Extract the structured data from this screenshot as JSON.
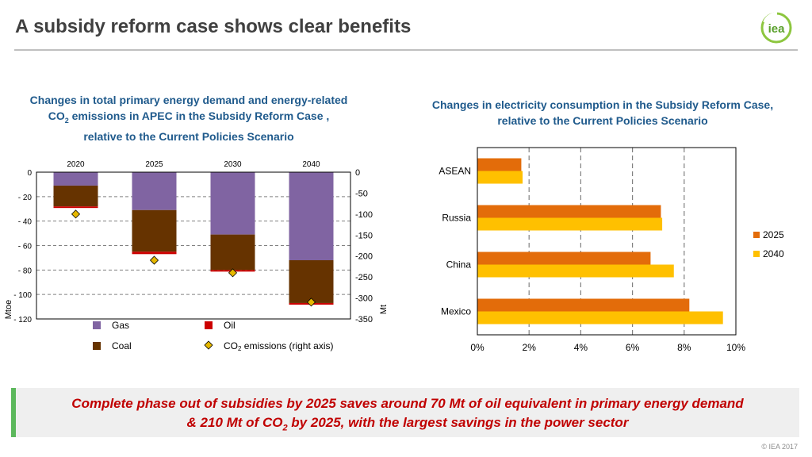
{
  "header": {
    "title": "A subsidy reform case shows clear benefits",
    "logo_text": "iea"
  },
  "left_chart_title": {
    "line1": "Changes in total primary energy demand and energy-related",
    "line2_pre": "CO",
    "line2_sub": "2",
    "line2_post": " emissions in APEC in the Subsidy Reform Case ,",
    "line3": "relative to the Current Policies Scenario"
  },
  "right_chart_title": {
    "line1": "Changes in electricity consumption in the Subsidy Reform Case,",
    "line2": "relative to the Current Policies Scenario"
  },
  "banner": {
    "line1": "Complete phase out of subsidies by 2025 saves around 70 Mt of oil equivalent in primary energy demand",
    "line2_pre": "& 210 Mt of CO",
    "line2_sub": "2",
    "line2_post": " by 2025, with the largest savings in the power sector",
    "accent_color": "#5cb85c",
    "text_color": "#c00000"
  },
  "footer": {
    "copyright": "© IEA 2017"
  },
  "chart_data": [
    {
      "type": "bar",
      "stacked": true,
      "categories": [
        "2020",
        "2025",
        "2030",
        "2040"
      ],
      "series": [
        {
          "name": "Gas",
          "color": "#8064a2",
          "values": [
            -11,
            -31,
            -51,
            -72
          ]
        },
        {
          "name": "Coal",
          "color": "#663300",
          "values": [
            -17,
            -34,
            -29,
            -35
          ]
        },
        {
          "name": "Oil",
          "color": "#cc0000",
          "values": [
            -1,
            -2,
            -1,
            -1
          ]
        }
      ],
      "secondary_series": {
        "name": "CO2 emissions (right axis)",
        "legend_pre": "CO",
        "legend_sub": "2",
        "legend_post": " emissions (right axis)",
        "color": "#e6b800",
        "values": [
          -100,
          -210,
          -240,
          -310
        ]
      },
      "ylabel": "Mtoe",
      "y2label": "Mt",
      "ylim": [
        -120,
        0
      ],
      "y2lim": [
        -350,
        0
      ],
      "yticks": [
        "0",
        "- 20",
        "- 40",
        "- 60",
        "- 80",
        "- 100",
        "- 120"
      ],
      "y2ticks": [
        "0",
        "-50",
        "-100",
        "-150",
        "-200",
        "-250",
        "-300",
        "-350"
      ],
      "grid": true
    },
    {
      "type": "bar",
      "orientation": "horizontal",
      "categories": [
        "ASEAN",
        "Russia",
        "China",
        "Mexico"
      ],
      "series": [
        {
          "name": "2025",
          "color": "#e36c0a",
          "values": [
            1.7,
            7.1,
            6.7,
            8.2
          ]
        },
        {
          "name": "2040",
          "color": "#ffc000",
          "values": [
            1.75,
            7.15,
            7.6,
            9.5
          ]
        }
      ],
      "xlim": [
        0,
        10
      ],
      "xticks": [
        "0%",
        "2%",
        "4%",
        "6%",
        "8%",
        "10%"
      ],
      "grid": true
    }
  ]
}
